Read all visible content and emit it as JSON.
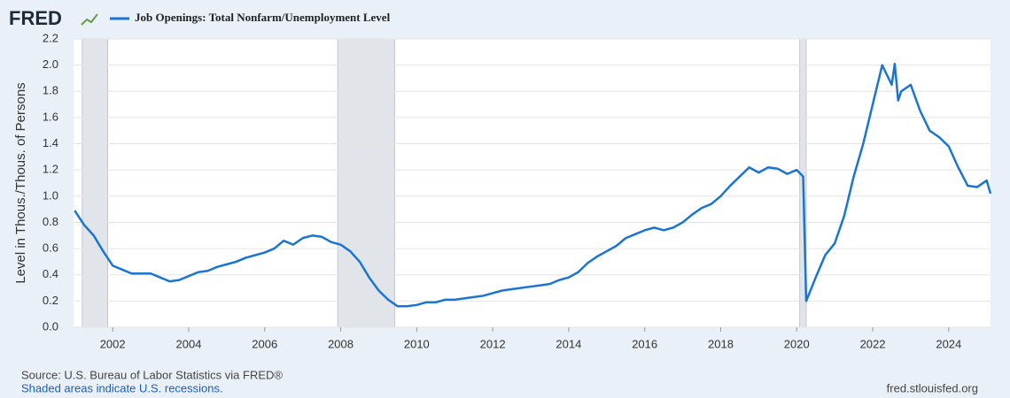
{
  "logo": "FRED",
  "chart_data": {
    "type": "line",
    "y_label": "Level in Thous./Thous. of Persons",
    "source": "Source: U.S. Bureau of Labor Statistics via FRED®",
    "note": "Shaded areas indicate U.S. recessions.",
    "url": "fred.stlouisfed.org",
    "x": [
      2001.0,
      2001.25,
      2001.5,
      2001.75,
      2002.0,
      2002.25,
      2002.5,
      2002.75,
      2003.0,
      2003.25,
      2003.5,
      2003.75,
      2004.0,
      2004.25,
      2004.5,
      2004.75,
      2005.0,
      2005.25,
      2005.5,
      2005.75,
      2006.0,
      2006.25,
      2006.5,
      2006.75,
      2007.0,
      2007.25,
      2007.5,
      2007.75,
      2008.0,
      2008.25,
      2008.5,
      2008.75,
      2009.0,
      2009.25,
      2009.5,
      2009.75,
      2010.0,
      2010.25,
      2010.5,
      2010.75,
      2011.0,
      2011.25,
      2011.5,
      2011.75,
      2012.0,
      2012.25,
      2012.5,
      2012.75,
      2013.0,
      2013.25,
      2013.5,
      2013.75,
      2014.0,
      2014.25,
      2014.5,
      2014.75,
      2015.0,
      2015.25,
      2015.5,
      2015.75,
      2016.0,
      2016.25,
      2016.5,
      2016.75,
      2017.0,
      2017.25,
      2017.5,
      2017.75,
      2018.0,
      2018.25,
      2018.5,
      2018.75,
      2019.0,
      2019.25,
      2019.5,
      2019.75,
      2020.0,
      2020.17,
      2020.25,
      2020.5,
      2020.75,
      2021.0,
      2021.25,
      2021.5,
      2021.75,
      2022.0,
      2022.25,
      2022.5,
      2022.58,
      2022.67,
      2022.75,
      2023.0,
      2023.25,
      2023.5,
      2023.75,
      2024.0,
      2024.25,
      2024.5,
      2024.75,
      2025.0,
      2025.1
    ],
    "series": [
      {
        "name": "Job Openings: Total Nonfarm/Unemployment Level",
        "color": "#1a75d2",
        "values": [
          0.89,
          0.78,
          0.7,
          0.58,
          0.47,
          0.44,
          0.41,
          0.41,
          0.41,
          0.38,
          0.35,
          0.36,
          0.39,
          0.42,
          0.43,
          0.46,
          0.48,
          0.5,
          0.53,
          0.55,
          0.57,
          0.6,
          0.66,
          0.63,
          0.68,
          0.7,
          0.69,
          0.65,
          0.63,
          0.58,
          0.5,
          0.38,
          0.28,
          0.21,
          0.16,
          0.16,
          0.17,
          0.19,
          0.19,
          0.21,
          0.21,
          0.22,
          0.23,
          0.24,
          0.26,
          0.28,
          0.29,
          0.3,
          0.31,
          0.32,
          0.33,
          0.36,
          0.38,
          0.42,
          0.49,
          0.54,
          0.58,
          0.62,
          0.68,
          0.71,
          0.74,
          0.76,
          0.74,
          0.76,
          0.8,
          0.86,
          0.91,
          0.94,
          1.0,
          1.08,
          1.15,
          1.22,
          1.18,
          1.22,
          1.21,
          1.17,
          1.2,
          1.15,
          0.2,
          0.38,
          0.55,
          0.64,
          0.85,
          1.15,
          1.4,
          1.7,
          2.0,
          1.85,
          2.01,
          1.73,
          1.8,
          1.85,
          1.65,
          1.5,
          1.45,
          1.38,
          1.22,
          1.08,
          1.07,
          1.12,
          1.02
        ]
      }
    ],
    "recessions": [
      [
        2001.2,
        2001.87
      ],
      [
        2007.92,
        2009.42
      ],
      [
        2020.08,
        2020.25
      ]
    ],
    "xlim": [
      2000.97,
      2025.1
    ],
    "ylim": [
      0,
      2.2
    ],
    "xticks": [
      2002,
      2004,
      2006,
      2008,
      2010,
      2012,
      2014,
      2016,
      2018,
      2020,
      2022,
      2024
    ],
    "yticks": [
      {
        "value": 0,
        "label": "0.0"
      },
      0.2,
      0.4,
      0.6,
      0.8,
      {
        "value": 1,
        "label": "1.0"
      },
      1.2,
      1.4,
      1.6,
      1.8,
      {
        "value": 2,
        "label": "2.0"
      },
      2.2
    ],
    "grid": true
  }
}
